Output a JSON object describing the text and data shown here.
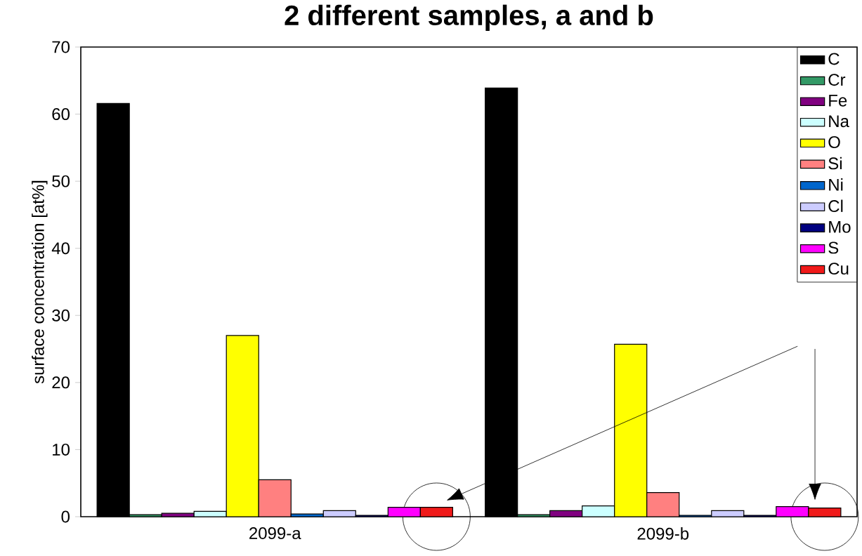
{
  "chart_data": {
    "type": "bar",
    "title": "2 different samples, a and b",
    "ylabel": "surface concentration [at%]",
    "categories": [
      "2099-a",
      "2099-b"
    ],
    "series": [
      {
        "name": "C",
        "color": "#000000",
        "values": [
          61.6,
          63.9
        ]
      },
      {
        "name": "Cr",
        "color": "#339966",
        "values": [
          0.3,
          0.3
        ]
      },
      {
        "name": "Fe",
        "color": "#800080",
        "values": [
          0.5,
          0.9
        ]
      },
      {
        "name": "Na",
        "color": "#ccffff",
        "values": [
          0.8,
          1.6
        ]
      },
      {
        "name": "O",
        "color": "#ffff00",
        "values": [
          27.0,
          25.7
        ]
      },
      {
        "name": "Si",
        "color": "#ff8080",
        "values": [
          5.5,
          3.6
        ]
      },
      {
        "name": "Ni",
        "color": "#0066cc",
        "values": [
          0.4,
          0.2
        ]
      },
      {
        "name": "Cl",
        "color": "#ccccff",
        "values": [
          0.9,
          0.9
        ]
      },
      {
        "name": "Mo",
        "color": "#000080",
        "values": [
          0.2,
          0.2
        ]
      },
      {
        "name": "S",
        "color": "#ff00ff",
        "values": [
          1.4,
          1.5
        ]
      },
      {
        "name": "Cu",
        "color": "#f01a1a",
        "values": [
          1.4,
          1.3
        ]
      }
    ],
    "ylim": [
      0,
      70
    ],
    "yticks": [
      0,
      10,
      20,
      30,
      40,
      50,
      60,
      70
    ],
    "grid": false,
    "legend": "top right"
  }
}
